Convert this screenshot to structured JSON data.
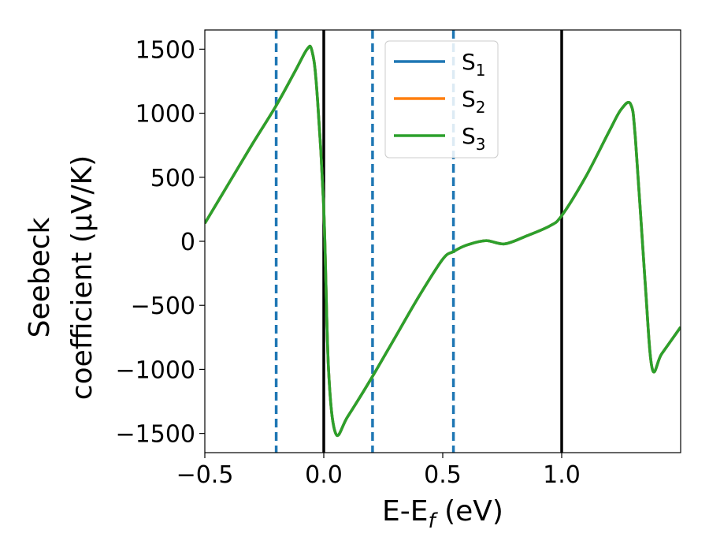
{
  "chart_data": {
    "type": "line",
    "xlabel": "E-E_f (eV)",
    "xlabel_main": "E-E",
    "xlabel_sub": "f",
    "xlabel_tail": " (eV)",
    "ylabel_line1": "Seebeck",
    "ylabel_line2": "coefficient  (μV/K)",
    "xlim": [
      -0.5,
      1.5
    ],
    "ylim": [
      -1650,
      1650
    ],
    "xticks": [
      -0.5,
      0.0,
      0.5,
      1.0
    ],
    "xtick_labels": [
      "−0.5",
      "0.0",
      "0.5",
      "1.0"
    ],
    "yticks": [
      -1500,
      -1000,
      -500,
      0,
      500,
      1000,
      1500
    ],
    "ytick_labels": [
      "−1500",
      "−1000",
      "−500",
      "0",
      "500",
      "1000",
      "1500"
    ],
    "grid": false,
    "legend_position": "top-center",
    "vlines_solid": [
      0.0,
      1.0
    ],
    "vlines_dashed": [
      -0.2,
      0.205,
      0.545
    ],
    "series": [
      {
        "name": "S",
        "sub": "1",
        "color": "#1f77b4",
        "x": [
          -0.5,
          -0.4,
          -0.3,
          -0.2,
          -0.12,
          -0.07,
          -0.05,
          -0.03,
          0.0,
          0.02,
          0.05,
          0.1,
          0.2,
          0.3,
          0.4,
          0.5,
          0.545,
          0.6,
          0.68,
          0.76,
          0.85,
          0.95,
          1.0,
          1.1,
          1.2,
          1.25,
          1.29,
          1.31,
          1.35,
          1.38,
          1.42,
          1.5
        ],
        "y": [
          140,
          450,
          760,
          1060,
          1330,
          1500,
          1490,
          1200,
          250,
          -1000,
          -1500,
          -1370,
          -1070,
          -750,
          -430,
          -140,
          -80,
          -30,
          5,
          -20,
          40,
          120,
          200,
          500,
          860,
          1030,
          1070,
          800,
          -300,
          -990,
          -880,
          -670
        ]
      },
      {
        "name": "S",
        "sub": "2",
        "color": "#ff7f0e",
        "x": [
          -0.5,
          -0.4,
          -0.3,
          -0.2,
          -0.12,
          -0.07,
          -0.05,
          -0.03,
          0.0,
          0.02,
          0.05,
          0.1,
          0.2,
          0.3,
          0.4,
          0.5,
          0.545,
          0.6,
          0.68,
          0.76,
          0.85,
          0.95,
          1.0,
          1.1,
          1.2,
          1.25,
          1.29,
          1.31,
          1.35,
          1.38,
          1.42,
          1.5
        ],
        "y": [
          140,
          450,
          760,
          1060,
          1330,
          1500,
          1490,
          1200,
          250,
          -1000,
          -1500,
          -1370,
          -1070,
          -750,
          -430,
          -140,
          -80,
          -30,
          5,
          -20,
          40,
          120,
          200,
          500,
          860,
          1030,
          1070,
          800,
          -300,
          -990,
          -880,
          -670
        ]
      },
      {
        "name": "S",
        "sub": "3",
        "color": "#2ca02c",
        "x": [
          -0.5,
          -0.4,
          -0.3,
          -0.2,
          -0.12,
          -0.07,
          -0.05,
          -0.03,
          0.0,
          0.02,
          0.05,
          0.1,
          0.2,
          0.3,
          0.4,
          0.5,
          0.545,
          0.6,
          0.68,
          0.76,
          0.85,
          0.95,
          1.0,
          1.1,
          1.2,
          1.25,
          1.29,
          1.31,
          1.35,
          1.38,
          1.42,
          1.5
        ],
        "y": [
          140,
          450,
          760,
          1060,
          1330,
          1500,
          1490,
          1200,
          250,
          -1000,
          -1500,
          -1370,
          -1070,
          -750,
          -430,
          -140,
          -80,
          -30,
          5,
          -20,
          40,
          120,
          200,
          500,
          860,
          1030,
          1070,
          800,
          -300,
          -990,
          -880,
          -670
        ]
      }
    ]
  }
}
